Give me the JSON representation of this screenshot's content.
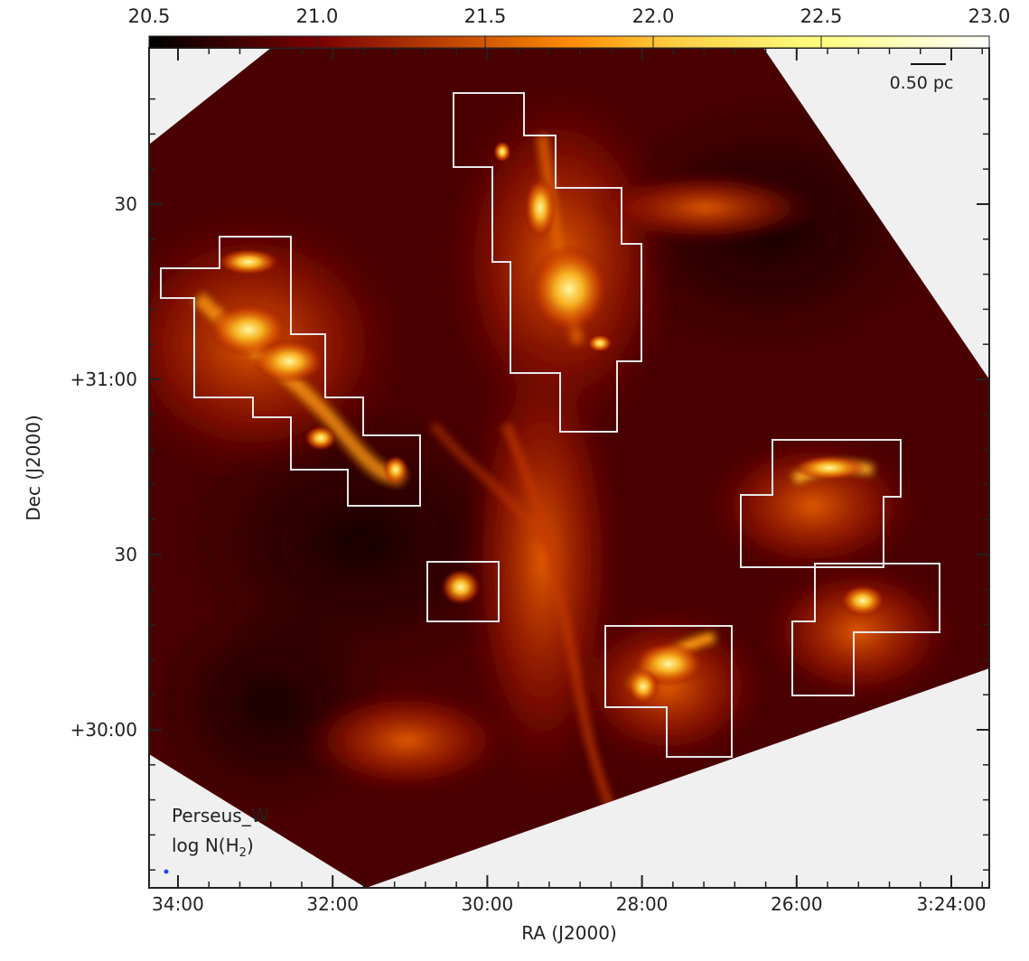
{
  "chart_data": {
    "type": "heatmap",
    "title": "",
    "xlabel": "RA (J2000)",
    "ylabel": "Dec (J2000)",
    "x_ticks": [
      {
        "label": "34:00",
        "minutes": 34
      },
      {
        "label": "32:00",
        "minutes": 32
      },
      {
        "label": "30:00",
        "minutes": 30
      },
      {
        "label": "28:00",
        "minutes": 28
      },
      {
        "label": "26:00",
        "minutes": 26
      },
      {
        "label": "3:24:00",
        "minutes": 24
      }
    ],
    "y_ticks": [
      {
        "label": "30",
        "dec": 31.5
      },
      {
        "label": "+31:00",
        "dec": 31.0
      },
      {
        "label": "30",
        "dec": 30.5
      },
      {
        "label": "+30:00",
        "dec": 30.0
      }
    ],
    "colorbar": {
      "range": [
        20.5,
        23.0
      ],
      "ticks": [
        "20.5",
        "21.0",
        "21.5",
        "22.0",
        "22.5",
        "23.0"
      ],
      "colormap": [
        "#000000",
        "#7a0000",
        "#d85a00",
        "#ff8c00",
        "#ffd850",
        "#ffff80",
        "#ffffff"
      ],
      "placement": "top"
    },
    "scale_bar": "0.50 pc",
    "annotation": {
      "field": "Perseus_W",
      "quantity_prefix": "log N(H",
      "quantity_sub": "2",
      "quantity_suffix": ")"
    }
  }
}
